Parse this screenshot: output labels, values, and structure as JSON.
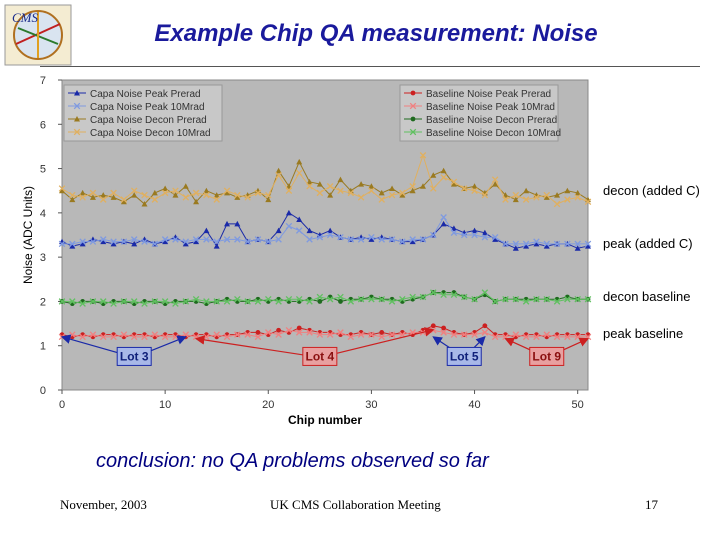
{
  "slide": {
    "title": "Example Chip QA measurement: Noise",
    "conclusion_keyword": "conclusion",
    "conclusion_rest": ": no QA problems observed so far",
    "footer_date": "November, 2003",
    "footer_meeting": "UK CMS Collaboration Meeting",
    "footer_page": "17",
    "logo_text": "CMS"
  },
  "side_labels": [
    "decon (added C)",
    "peak (added C)",
    "decon baseline",
    "peak baseline"
  ],
  "chart_data": {
    "type": "line",
    "title": "",
    "xlabel": "Chip number",
    "ylabel": "Noise (ADC Units)",
    "xlim": [
      0,
      51
    ],
    "ylim": [
      0,
      7
    ],
    "xticks": [
      0,
      10,
      20,
      30,
      40,
      50
    ],
    "yticks": [
      0,
      1,
      2,
      3,
      4,
      5,
      6,
      7
    ],
    "x": [
      0,
      1,
      2,
      3,
      4,
      5,
      6,
      7,
      8,
      9,
      10,
      11,
      12,
      13,
      14,
      15,
      16,
      17,
      18,
      19,
      20,
      21,
      22,
      23,
      24,
      25,
      26,
      27,
      28,
      29,
      30,
      31,
      32,
      33,
      34,
      35,
      36,
      37,
      38,
      39,
      40,
      41,
      42,
      43,
      44,
      45,
      46,
      47,
      48,
      49,
      50,
      51
    ],
    "series": [
      {
        "name": "Capa Noise Peak Prerad",
        "color": "#1a2aa8",
        "values": [
          3.35,
          3.25,
          3.3,
          3.4,
          3.35,
          3.3,
          3.35,
          3.3,
          3.4,
          3.3,
          3.35,
          3.45,
          3.3,
          3.35,
          3.6,
          3.25,
          3.75,
          3.75,
          3.35,
          3.4,
          3.35,
          3.6,
          4.0,
          3.85,
          3.6,
          3.5,
          3.6,
          3.45,
          3.4,
          3.45,
          3.4,
          3.45,
          3.4,
          3.35,
          3.35,
          3.4,
          3.5,
          3.75,
          3.65,
          3.55,
          3.6,
          3.55,
          3.4,
          3.3,
          3.2,
          3.25,
          3.3,
          3.25,
          3.3,
          3.3,
          3.2,
          3.25
        ]
      },
      {
        "name": "Capa Noise Peak 10Mrad",
        "color": "#7f9ae0",
        "values": [
          3.3,
          3.3,
          3.35,
          3.35,
          3.4,
          3.35,
          3.35,
          3.4,
          3.35,
          3.3,
          3.4,
          3.4,
          3.35,
          3.4,
          3.4,
          3.35,
          3.4,
          3.4,
          3.35,
          3.4,
          3.35,
          3.4,
          3.7,
          3.6,
          3.4,
          3.45,
          3.5,
          3.45,
          3.4,
          3.4,
          3.45,
          3.4,
          3.4,
          3.35,
          3.4,
          3.4,
          3.5,
          3.9,
          3.55,
          3.5,
          3.5,
          3.45,
          3.45,
          3.3,
          3.3,
          3.3,
          3.35,
          3.3,
          3.3,
          3.3,
          3.3,
          3.3
        ]
      },
      {
        "name": "Capa Noise Decon Prerad",
        "color": "#9a7a20",
        "values": [
          4.5,
          4.3,
          4.45,
          4.35,
          4.4,
          4.35,
          4.25,
          4.4,
          4.2,
          4.45,
          4.55,
          4.4,
          4.6,
          4.25,
          4.5,
          4.4,
          4.45,
          4.35,
          4.4,
          4.5,
          4.3,
          4.95,
          4.6,
          5.15,
          4.7,
          4.65,
          4.4,
          4.75,
          4.5,
          4.65,
          4.6,
          4.45,
          4.55,
          4.4,
          4.5,
          4.6,
          4.85,
          4.95,
          4.65,
          4.55,
          4.6,
          4.45,
          4.65,
          4.4,
          4.3,
          4.5,
          4.4,
          4.35,
          4.4,
          4.5,
          4.45,
          4.3
        ]
      },
      {
        "name": "Capa Noise Decon 10Mrad",
        "color": "#e0b060",
        "values": [
          4.55,
          4.4,
          4.35,
          4.45,
          4.3,
          4.45,
          4.3,
          4.5,
          4.4,
          4.3,
          4.45,
          4.5,
          4.35,
          4.45,
          4.4,
          4.3,
          4.5,
          4.4,
          4.35,
          4.45,
          4.4,
          4.85,
          4.5,
          4.9,
          4.6,
          4.45,
          4.6,
          4.5,
          4.45,
          4.35,
          4.5,
          4.3,
          4.4,
          4.45,
          4.6,
          5.3,
          4.55,
          4.8,
          4.7,
          4.55,
          4.5,
          4.4,
          4.75,
          4.3,
          4.4,
          4.3,
          4.35,
          4.4,
          4.2,
          4.3,
          4.35,
          4.25
        ]
      },
      {
        "name": "Baseline Noise Peak Prerad",
        "color": "#cc2020",
        "values": [
          1.25,
          1.2,
          1.25,
          1.2,
          1.25,
          1.25,
          1.2,
          1.25,
          1.25,
          1.2,
          1.25,
          1.25,
          1.2,
          1.25,
          1.25,
          1.2,
          1.25,
          1.25,
          1.3,
          1.3,
          1.25,
          1.35,
          1.3,
          1.4,
          1.35,
          1.3,
          1.3,
          1.25,
          1.25,
          1.3,
          1.25,
          1.3,
          1.25,
          1.3,
          1.25,
          1.35,
          1.45,
          1.4,
          1.3,
          1.25,
          1.3,
          1.45,
          1.25,
          1.25,
          1.2,
          1.25,
          1.25,
          1.2,
          1.25,
          1.25,
          1.25,
          1.25
        ]
      },
      {
        "name": "Baseline Noise Peak 10Mrad",
        "color": "#f08080",
        "values": [
          1.2,
          1.25,
          1.2,
          1.25,
          1.2,
          1.2,
          1.25,
          1.2,
          1.2,
          1.25,
          1.2,
          1.2,
          1.25,
          1.2,
          1.2,
          1.25,
          1.2,
          1.25,
          1.25,
          1.2,
          1.3,
          1.25,
          1.35,
          1.3,
          1.3,
          1.25,
          1.25,
          1.3,
          1.2,
          1.25,
          1.25,
          1.2,
          1.25,
          1.25,
          1.3,
          1.3,
          1.35,
          1.3,
          1.25,
          1.25,
          1.25,
          1.3,
          1.2,
          1.2,
          1.25,
          1.2,
          1.2,
          1.25,
          1.2,
          1.2,
          1.2,
          1.2
        ]
      },
      {
        "name": "Baseline Noise Decon Prerad",
        "color": "#1e6a1e",
        "values": [
          2.0,
          1.95,
          2.0,
          2.0,
          1.95,
          2.0,
          2.0,
          1.95,
          2.0,
          2.0,
          1.95,
          2.0,
          2.0,
          2.0,
          1.95,
          2.0,
          2.05,
          2.0,
          2.0,
          2.05,
          2.0,
          2.05,
          2.0,
          2.0,
          2.05,
          2.0,
          2.1,
          2.0,
          2.05,
          2.05,
          2.1,
          2.05,
          2.05,
          2.0,
          2.05,
          2.1,
          2.2,
          2.2,
          2.2,
          2.1,
          2.05,
          2.15,
          2.0,
          2.05,
          2.05,
          2.05,
          2.05,
          2.05,
          2.05,
          2.1,
          2.05,
          2.05
        ]
      },
      {
        "name": "Baseline Noise Decon 10Mrad",
        "color": "#60c060",
        "values": [
          2.0,
          2.0,
          1.95,
          2.0,
          2.0,
          1.95,
          2.0,
          2.0,
          1.95,
          2.0,
          2.0,
          1.95,
          2.0,
          2.05,
          2.0,
          2.0,
          2.0,
          2.05,
          2.0,
          2.0,
          2.05,
          2.0,
          2.05,
          2.05,
          2.0,
          2.1,
          2.05,
          2.1,
          2.0,
          2.05,
          2.05,
          2.05,
          2.0,
          2.05,
          2.1,
          2.1,
          2.2,
          2.15,
          2.15,
          2.1,
          2.05,
          2.2,
          2.0,
          2.05,
          2.05,
          2.0,
          2.05,
          2.05,
          2.0,
          2.05,
          2.05,
          2.05
        ]
      }
    ],
    "legend_left": [
      "Capa Noise Peak Prerad",
      "Capa Noise Peak 10Mrad",
      "Capa Noise Decon Prerad",
      "Capa Noise Decon 10Mrad"
    ],
    "legend_right": [
      "Baseline Noise Peak Prerad",
      "Baseline Noise Peak 10Mrad",
      "Baseline Noise Decon Prerad",
      "Baseline Noise Decon 10Mrad"
    ],
    "legend_position": "top",
    "annotations": [
      {
        "label": "Lot 3",
        "color": "#1a2aa8",
        "arrow_from": 7,
        "arrows_to": [
          0,
          12
        ]
      },
      {
        "label": "Lot 4",
        "color": "#cc2020",
        "arrow_from": 25,
        "arrows_to": [
          13,
          36
        ]
      },
      {
        "label": "Lot 5",
        "color": "#1a2aa8",
        "arrow_from": 39,
        "arrows_to": [
          36,
          41
        ]
      },
      {
        "label": "Lot 9",
        "color": "#cc2020",
        "arrow_from": 47,
        "arrows_to": [
          43,
          51
        ]
      }
    ],
    "annotation_y": 0.6
  }
}
